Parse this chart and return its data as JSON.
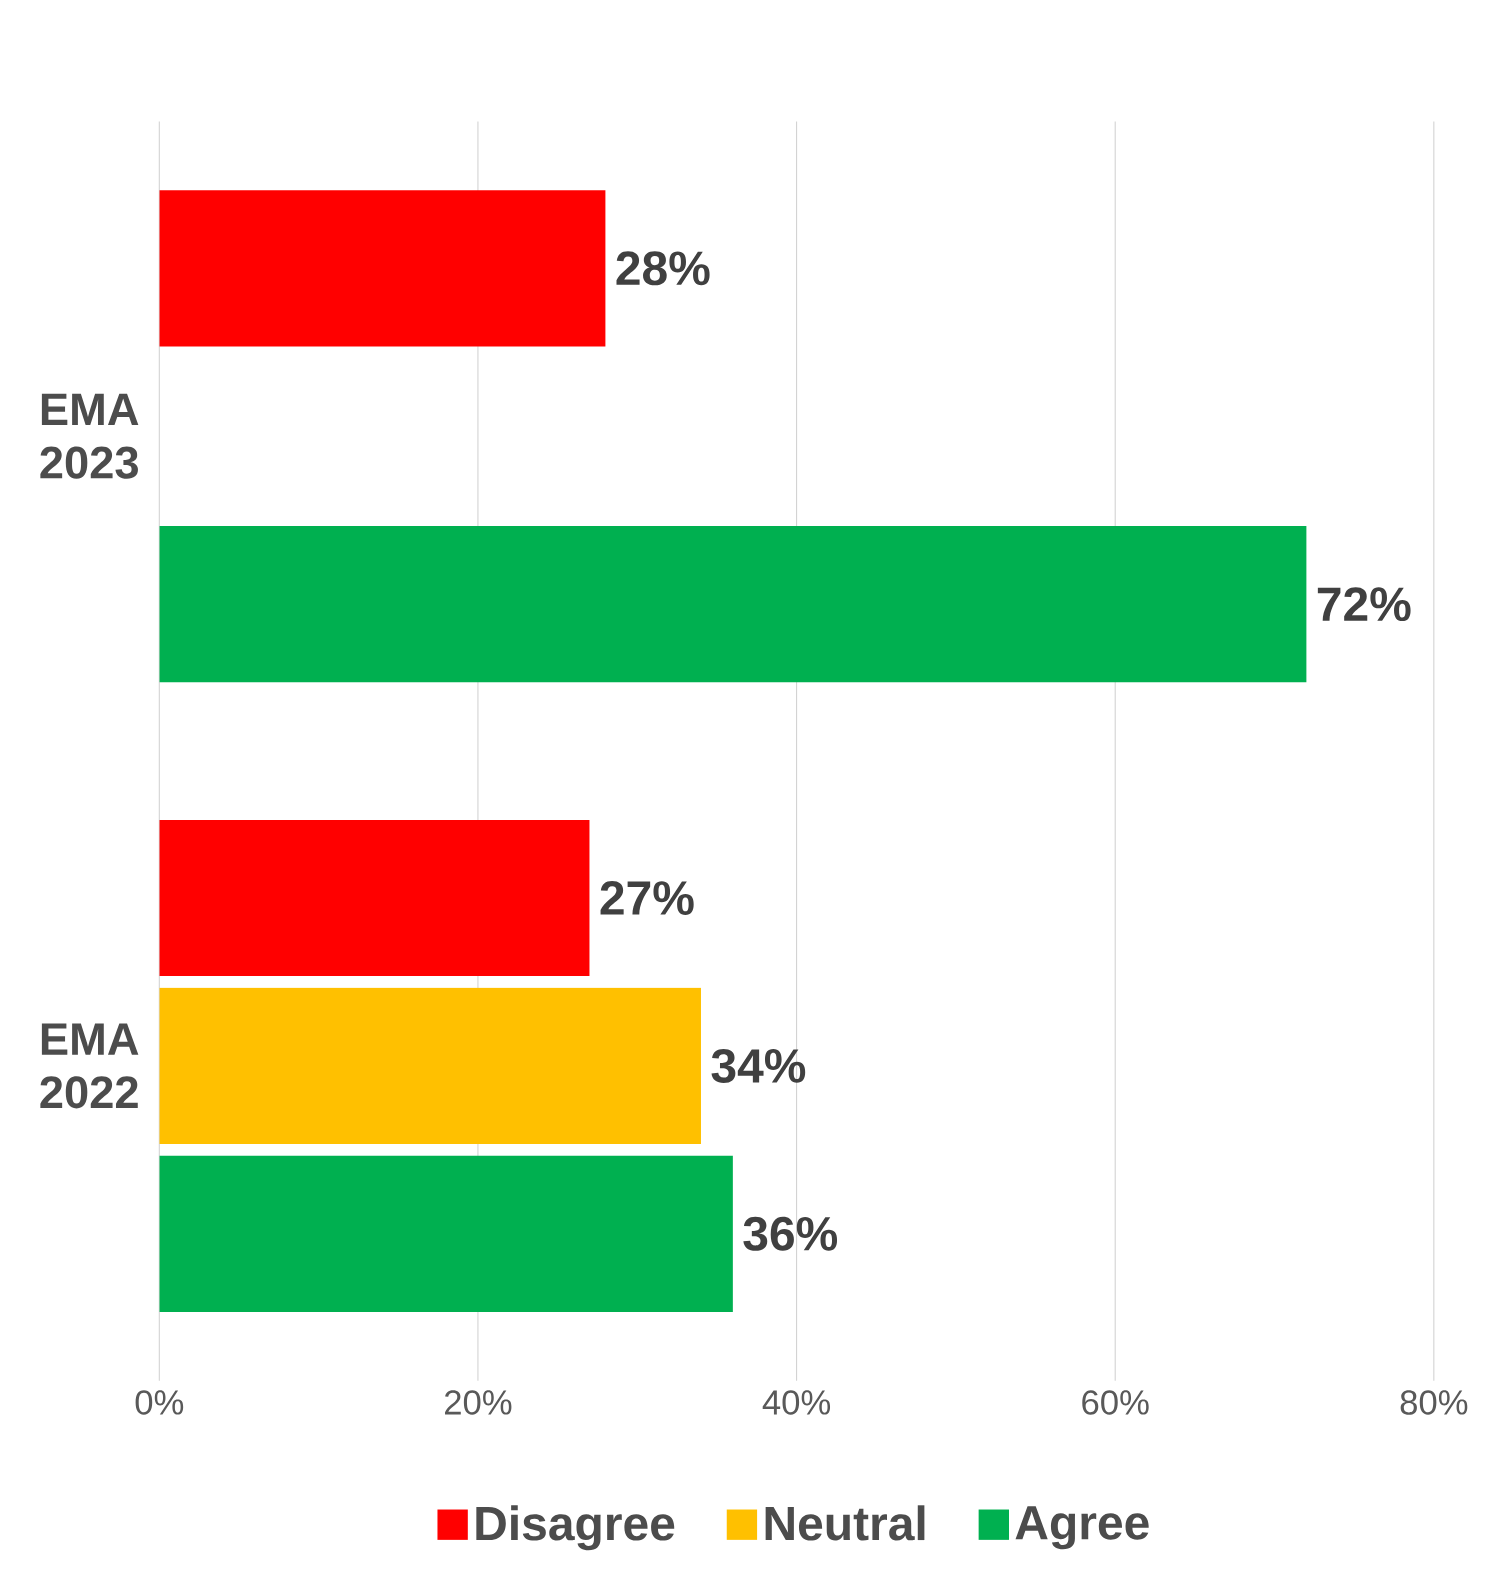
{
  "chart_data": {
    "type": "bar",
    "orientation": "horizontal",
    "categories": [
      "EMA 2023",
      "EMA 2022"
    ],
    "series": [
      {
        "name": "Disagree",
        "color": "#ff0000",
        "values": [
          28,
          27
        ],
        "value_labels": [
          "28%",
          "27%"
        ]
      },
      {
        "name": "Neutral",
        "color": "#ffc000",
        "values": [
          null,
          34
        ],
        "value_labels": [
          null,
          "34%"
        ]
      },
      {
        "name": "Agree",
        "color": "#00b050",
        "values": [
          72,
          36
        ],
        "value_labels": [
          "72%",
          "36%"
        ]
      }
    ],
    "xlim": [
      0,
      80
    ],
    "xticks": [
      {
        "value": 0,
        "label": "0%"
      },
      {
        "value": 20,
        "label": "20%"
      },
      {
        "value": 40,
        "label": "40%"
      },
      {
        "value": 60,
        "label": "60%"
      },
      {
        "value": 80,
        "label": "80%"
      }
    ],
    "grid": "x",
    "legend": "bottom"
  }
}
